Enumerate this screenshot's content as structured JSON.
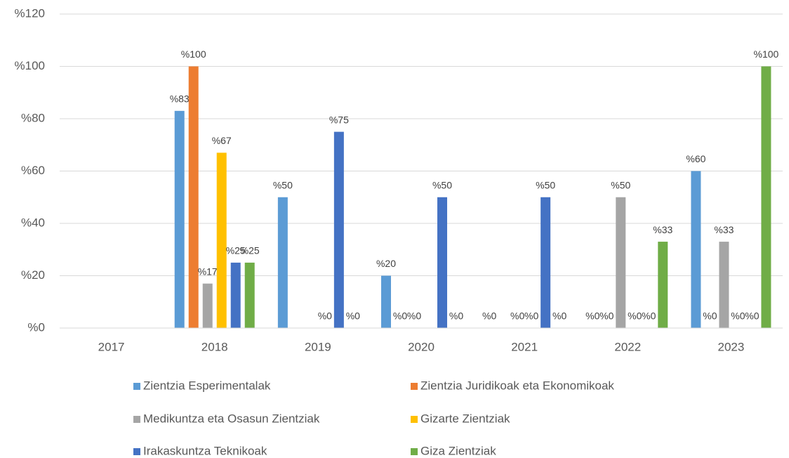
{
  "chart_data": {
    "type": "bar",
    "categories": [
      "2017",
      "2018",
      "2019",
      "2020",
      "2021",
      "2022",
      "2023"
    ],
    "series": [
      {
        "name": "Zientzia Esperimentalak",
        "color": "#5b9bd5",
        "values": [
          null,
          83,
          50,
          20,
          0,
          0,
          60
        ],
        "value_labels": [
          null,
          "%83",
          "%50",
          "%20",
          "%0",
          "%0",
          "%60"
        ]
      },
      {
        "name": "Zientzia Juridikoak eta Ekonomikoak",
        "color": "#ed7d31",
        "values": [
          null,
          100,
          null,
          0,
          null,
          0,
          0
        ],
        "value_labels": [
          null,
          "%100",
          null,
          "%0",
          null,
          "%0",
          "%0"
        ]
      },
      {
        "name": "Medikuntza eta Osasun Zientziak",
        "color": "#a5a5a5",
        "values": [
          null,
          17,
          null,
          0,
          0,
          50,
          33
        ],
        "value_labels": [
          null,
          "%17",
          null,
          "%0",
          "%0",
          "%50",
          "%33"
        ]
      },
      {
        "name": "Gizarte Zientziak",
        "color": "#ffc000",
        "values": [
          null,
          67,
          0,
          null,
          0,
          0,
          0
        ],
        "value_labels": [
          null,
          "%67",
          "%0",
          null,
          "%0",
          "%0",
          "%0"
        ]
      },
      {
        "name": "Irakaskuntza Teknikoak",
        "color": "#4472c4",
        "values": [
          null,
          25,
          75,
          50,
          50,
          0,
          0
        ],
        "value_labels": [
          null,
          "%25",
          "%75",
          "%50",
          "%50",
          "%0",
          "%0"
        ]
      },
      {
        "name": "Giza Zientziak",
        "color": "#70ad47",
        "values": [
          null,
          25,
          0,
          0,
          0,
          33,
          100
        ],
        "value_labels": [
          null,
          "%25",
          "%0",
          "%0",
          "%0",
          "%33",
          "%100"
        ]
      }
    ],
    "ylim": [
      0,
      120
    ],
    "yticks": [
      {
        "value": 0,
        "label": "%0"
      },
      {
        "value": 20,
        "label": "%20"
      },
      {
        "value": 40,
        "label": "%40"
      },
      {
        "value": 60,
        "label": "%60"
      },
      {
        "value": 80,
        "label": "%80"
      },
      {
        "value": 100,
        "label": "%100"
      },
      {
        "value": 120,
        "label": "%120"
      }
    ],
    "grid": true,
    "legend": "bottom"
  }
}
